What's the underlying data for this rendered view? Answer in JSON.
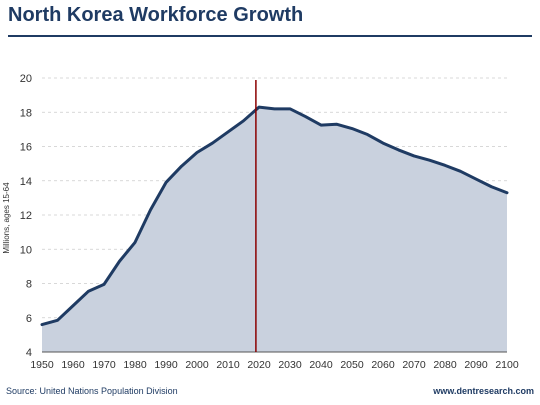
{
  "header": {
    "title": "North Korea Workforce Growth"
  },
  "footer": {
    "source": "Source: United Nations Population Division",
    "website": "www.dentresearch.com"
  },
  "colors": {
    "title": "#1f3b63",
    "line": "#1f3b63",
    "fill": "#c9d1de",
    "marker": "#8b0000",
    "grid": "#cccccc",
    "axis": "#555555"
  },
  "chart_data": {
    "type": "area",
    "ylabel": "Millions, ages 15-64",
    "xlabel": "",
    "xlim": [
      1950,
      2100
    ],
    "ylim": [
      4,
      20
    ],
    "x_ticks": [
      1950,
      1960,
      1970,
      1980,
      1990,
      2000,
      2010,
      2020,
      2030,
      2040,
      2050,
      2060,
      2070,
      2080,
      2090,
      2100
    ],
    "y_ticks": [
      4,
      6,
      8,
      10,
      12,
      14,
      16,
      18,
      20
    ],
    "grid": "horizontal dashed",
    "marker_line_x": 2019,
    "series": [
      {
        "x": [
          1950,
          1955,
          1960,
          1965,
          1970,
          1975,
          1980,
          1985,
          1990,
          1995,
          2000,
          2005,
          2010,
          2015,
          2020,
          2025,
          2030,
          2035,
          2040,
          2045,
          2050,
          2055,
          2060,
          2065,
          2070,
          2075,
          2080,
          2085,
          2090,
          2095,
          2100
        ],
        "values": [
          5.6,
          5.85,
          6.7,
          7.55,
          7.95,
          9.3,
          10.4,
          12.3,
          13.9,
          14.85,
          15.65,
          16.2,
          16.85,
          17.5,
          18.3,
          18.2,
          18.2,
          17.75,
          17.25,
          17.3,
          17.05,
          16.7,
          16.2,
          15.8,
          15.45,
          15.2,
          14.9,
          14.55,
          14.1,
          13.65,
          13.3
        ]
      }
    ]
  }
}
